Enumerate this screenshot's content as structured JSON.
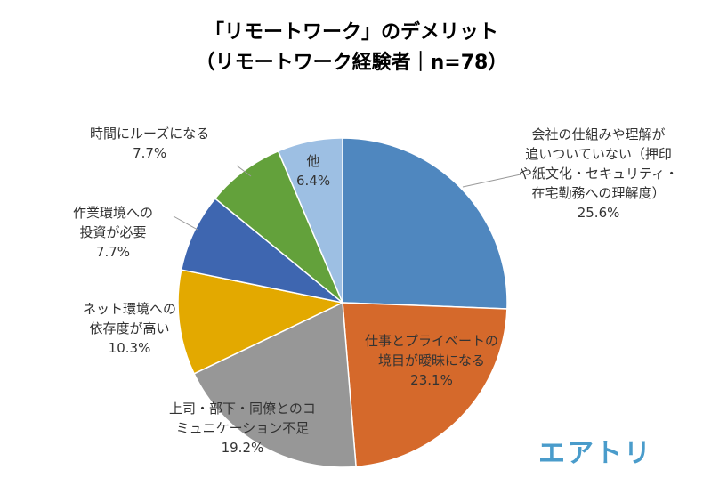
{
  "title": {
    "line1": "「リモートワーク」のデメリット",
    "line2": "（リモートワーク経験者｜n=78）"
  },
  "logo": "エアトリ",
  "chart_data": {
    "type": "pie",
    "title": "「リモートワーク」のデメリット（リモートワーク経験者｜n=78）",
    "start": "12 o'clock, clockwise",
    "slices": [
      {
        "label_lines": [
          "会社の仕組みや理解が",
          "追いついていない（押印",
          "や紙文化・セキュリティ・",
          "在宅勤務への理解度）"
        ],
        "value": 25.6,
        "value_label": "25.6%",
        "color": "#4f87bf"
      },
      {
        "label_lines": [
          "仕事とプライベートの",
          "境目が曖昧になる"
        ],
        "value": 23.1,
        "value_label": "23.1%",
        "color": "#d5692b"
      },
      {
        "label_lines": [
          "上司・部下・同僚とのコ",
          "ミュニケーション不足"
        ],
        "value": 19.2,
        "value_label": "19.2%",
        "color": "#979797"
      },
      {
        "label_lines": [
          "ネット環境への",
          "依存度が高い"
        ],
        "value": 10.3,
        "value_label": "10.3%",
        "color": "#e3a900"
      },
      {
        "label_lines": [
          "作業環境への",
          "投資が必要"
        ],
        "value": 7.7,
        "value_label": "7.7%",
        "color": "#3e66b0"
      },
      {
        "label_lines": [
          "時間にルーズになる"
        ],
        "value": 7.7,
        "value_label": "7.7%",
        "color": "#63a13b"
      },
      {
        "label_lines": [
          "他"
        ],
        "value": 6.4,
        "value_label": "6.4%",
        "color": "#9dbfe3"
      }
    ]
  }
}
